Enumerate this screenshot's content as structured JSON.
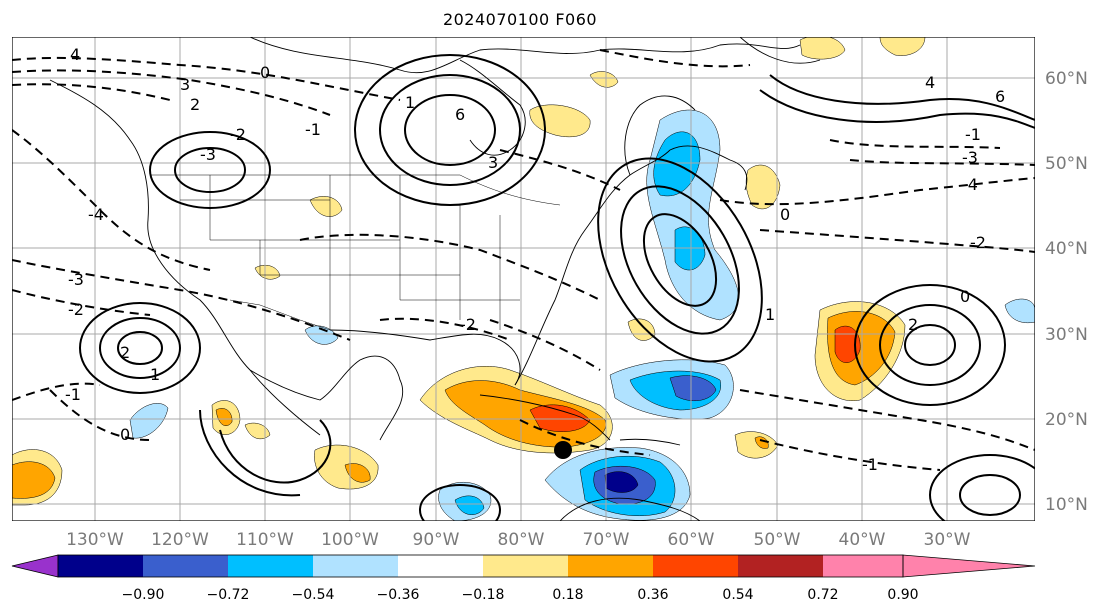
{
  "title": "2024070100 F060",
  "lat_labels": [
    "60°N",
    "50°N",
    "40°N",
    "30°N",
    "20°N",
    "10°N"
  ],
  "lon_labels": [
    "130°W",
    "120°W",
    "110°W",
    "100°W",
    "90°W",
    "80°W",
    "70°W",
    "60°W",
    "50°W",
    "40°W",
    "30°W"
  ],
  "colorbar": {
    "colors": [
      "#9932cc",
      "#00008b",
      "#3a5fcd",
      "#00bfff",
      "#b0e2ff",
      "#ffffff",
      "#ffe98c",
      "#ffa500",
      "#ff4500",
      "#b22222",
      "#ff82ab"
    ],
    "ticks": [
      "−0.90",
      "−0.72",
      "−0.54",
      "−0.36",
      "−0.18",
      "0.18",
      "0.36",
      "0.54",
      "0.72",
      "0.90"
    ]
  },
  "contour_labels": [
    "4",
    "3",
    "2",
    "0",
    "-1",
    "-2",
    "-3",
    "-4",
    "6",
    "1",
    "2",
    "-3",
    "-2",
    "0",
    "-1",
    "1",
    "3",
    "4",
    "6",
    "-3",
    "-1",
    "0",
    "-4",
    "-2",
    "0",
    "2",
    "-2",
    "1",
    "-1"
  ],
  "marker": {
    "label": "",
    "lat": 16.5,
    "lon": -75.5
  }
}
